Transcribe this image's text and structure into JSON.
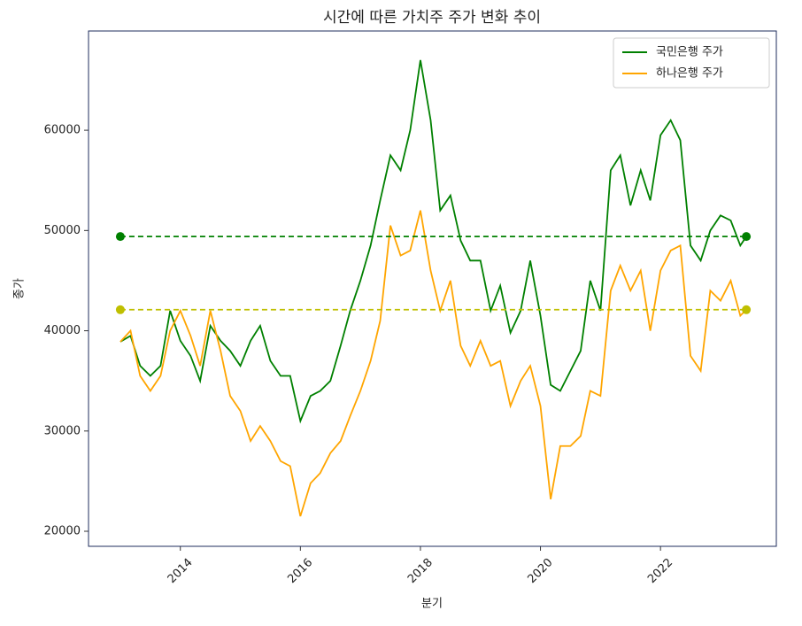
{
  "chart_data": {
    "type": "line",
    "title": "시간에 따른 가치주 주가 변화 추이",
    "x_label": "분기",
    "y_label": "종가",
    "x": [
      2013.0,
      2013.17,
      2013.33,
      2013.5,
      2013.67,
      2013.83,
      2014.0,
      2014.17,
      2014.33,
      2014.5,
      2014.67,
      2014.83,
      2015.0,
      2015.17,
      2015.33,
      2015.5,
      2015.67,
      2015.83,
      2016.0,
      2016.17,
      2016.33,
      2016.5,
      2016.67,
      2016.83,
      2017.0,
      2017.17,
      2017.33,
      2017.5,
      2017.67,
      2017.83,
      2018.0,
      2018.17,
      2018.33,
      2018.5,
      2018.67,
      2018.83,
      2019.0,
      2019.17,
      2019.33,
      2019.5,
      2019.67,
      2019.83,
      2020.0,
      2020.17,
      2020.33,
      2020.5,
      2020.67,
      2020.83,
      2021.0,
      2021.17,
      2021.33,
      2021.5,
      2021.67,
      2021.83,
      2022.0,
      2022.17,
      2022.33,
      2022.5,
      2022.67,
      2022.83,
      2023.0,
      2023.17,
      2023.33,
      2023.43
    ],
    "series": [
      {
        "name": "국민은행 주가",
        "color": "#008000",
        "values": [
          38900,
          39500,
          36500,
          35500,
          36500,
          42000,
          39000,
          37500,
          35000,
          40500,
          39000,
          38000,
          36500,
          39000,
          40500,
          37000,
          35500,
          35500,
          31000,
          33500,
          34000,
          35000,
          38500,
          42000,
          45000,
          48500,
          53000,
          57500,
          56000,
          60000,
          67000,
          61000,
          52000,
          53500,
          49000,
          47000,
          47000,
          42000,
          44500,
          39800,
          42000,
          47000,
          41500,
          34600,
          34000,
          36000,
          38000,
          45000,
          42000,
          56000,
          57500,
          52500,
          56000,
          53000,
          59500,
          61000,
          59000,
          48500,
          47000,
          50000,
          51500,
          51000,
          48500,
          49400
        ]
      },
      {
        "name": "하나은행 주가",
        "color": "#ffa500",
        "values": [
          38900,
          40000,
          35500,
          34000,
          35500,
          40000,
          42000,
          39500,
          36500,
          42000,
          38000,
          33500,
          32000,
          29000,
          30500,
          29000,
          27000,
          26500,
          21500,
          24800,
          25800,
          27800,
          29000,
          31500,
          34000,
          37000,
          41000,
          50500,
          47500,
          48000,
          52000,
          46000,
          42000,
          45000,
          38500,
          36500,
          39000,
          36500,
          37000,
          32500,
          35000,
          36500,
          32500,
          23200,
          28500,
          28500,
          29500,
          34000,
          33500,
          44000,
          46500,
          44000,
          46000,
          40000,
          46000,
          48000,
          48500,
          37500,
          36000,
          44000,
          43000,
          45000,
          41500,
          42100
        ]
      }
    ],
    "reference_lines": [
      {
        "value": 49400,
        "color": "#008000",
        "x": [
          2013.0,
          2023.43
        ]
      },
      {
        "value": 42100,
        "color": "#bfbf00",
        "x": [
          2013.0,
          2023.43
        ]
      }
    ],
    "xlim": [
      2012.47,
      2023.93
    ],
    "xticks": [
      2014,
      2016,
      2018,
      2020,
      2022
    ],
    "ylim": [
      18500,
      69900
    ],
    "yticks": [
      20000,
      30000,
      40000,
      50000,
      60000
    ],
    "legend": "upper right"
  }
}
